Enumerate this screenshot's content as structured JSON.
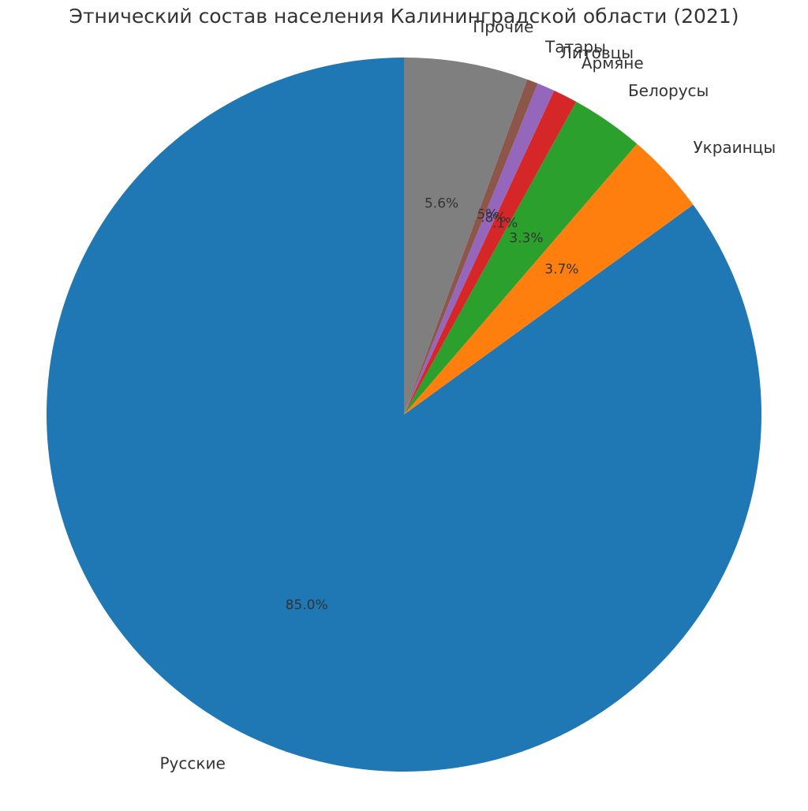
{
  "chart_data": {
    "type": "pie",
    "title": "Этнический состав населения Калининградской области (2021)",
    "start_angle_deg": 90,
    "direction": "counterclockwise",
    "labels": [
      "Русские",
      "Украинцы",
      "Белорусы",
      "Армяне",
      "Литовцы",
      "Татары",
      "Прочие"
    ],
    "values": [
      85.0,
      3.7,
      3.3,
      1.1,
      0.8,
      0.5,
      5.6
    ],
    "value_labels": [
      "85.0%",
      "3.7%",
      "3.3%",
      "1.1%",
      "0.8%",
      "0.5%",
      "5.6%"
    ],
    "colors": [
      "#1f77b4",
      "#ff7f0e",
      "#2ca02c",
      "#d62728",
      "#9467bd",
      "#8c564b",
      "#7f7f7f"
    ],
    "legend": "none"
  }
}
